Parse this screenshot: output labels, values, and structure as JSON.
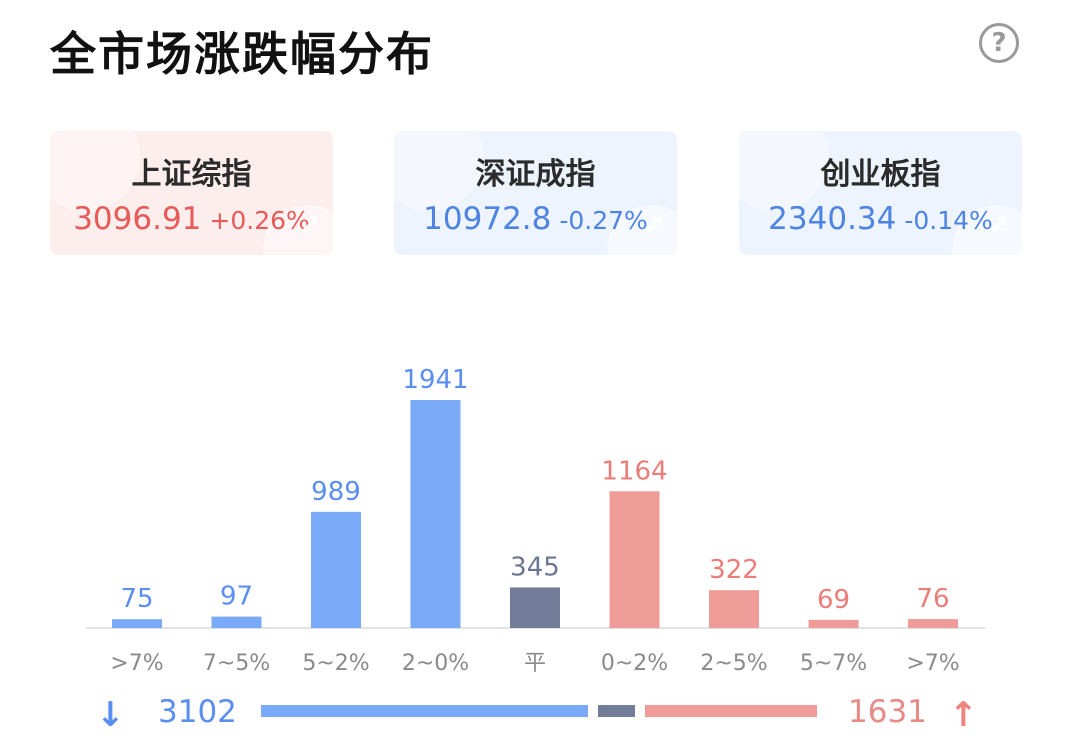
{
  "header": {
    "title": "全市场涨跌幅分布",
    "help_icon": "?"
  },
  "indices": [
    {
      "name": "上证综指",
      "value": "3096.91",
      "change": "+0.26%",
      "trend": "up"
    },
    {
      "name": "深证成指",
      "value": "10972.8",
      "change": "-0.27%",
      "trend": "down"
    },
    {
      "name": "创业板指",
      "value": "2340.34",
      "change": "-0.14%",
      "trend": "down"
    }
  ],
  "colors": {
    "down": "#7aa9f7",
    "flat": "#717d99",
    "up": "#ef9c98"
  },
  "chart_data": {
    "type": "bar",
    "categories": [
      ">7%",
      "7~5%",
      "5~2%",
      "2~0%",
      "平",
      "0~2%",
      "2~5%",
      "5~7%",
      ">7%"
    ],
    "values": [
      75,
      97,
      989,
      1941,
      345,
      1164,
      322,
      69,
      76
    ],
    "groups": [
      "down",
      "down",
      "down",
      "down",
      "flat",
      "up",
      "up",
      "up",
      "up"
    ],
    "ylim": [
      0,
      1941
    ],
    "grid": false
  },
  "summary": {
    "down_count": "3102",
    "up_count": "1631",
    "down_icon": "↓",
    "up_icon": "↑"
  }
}
